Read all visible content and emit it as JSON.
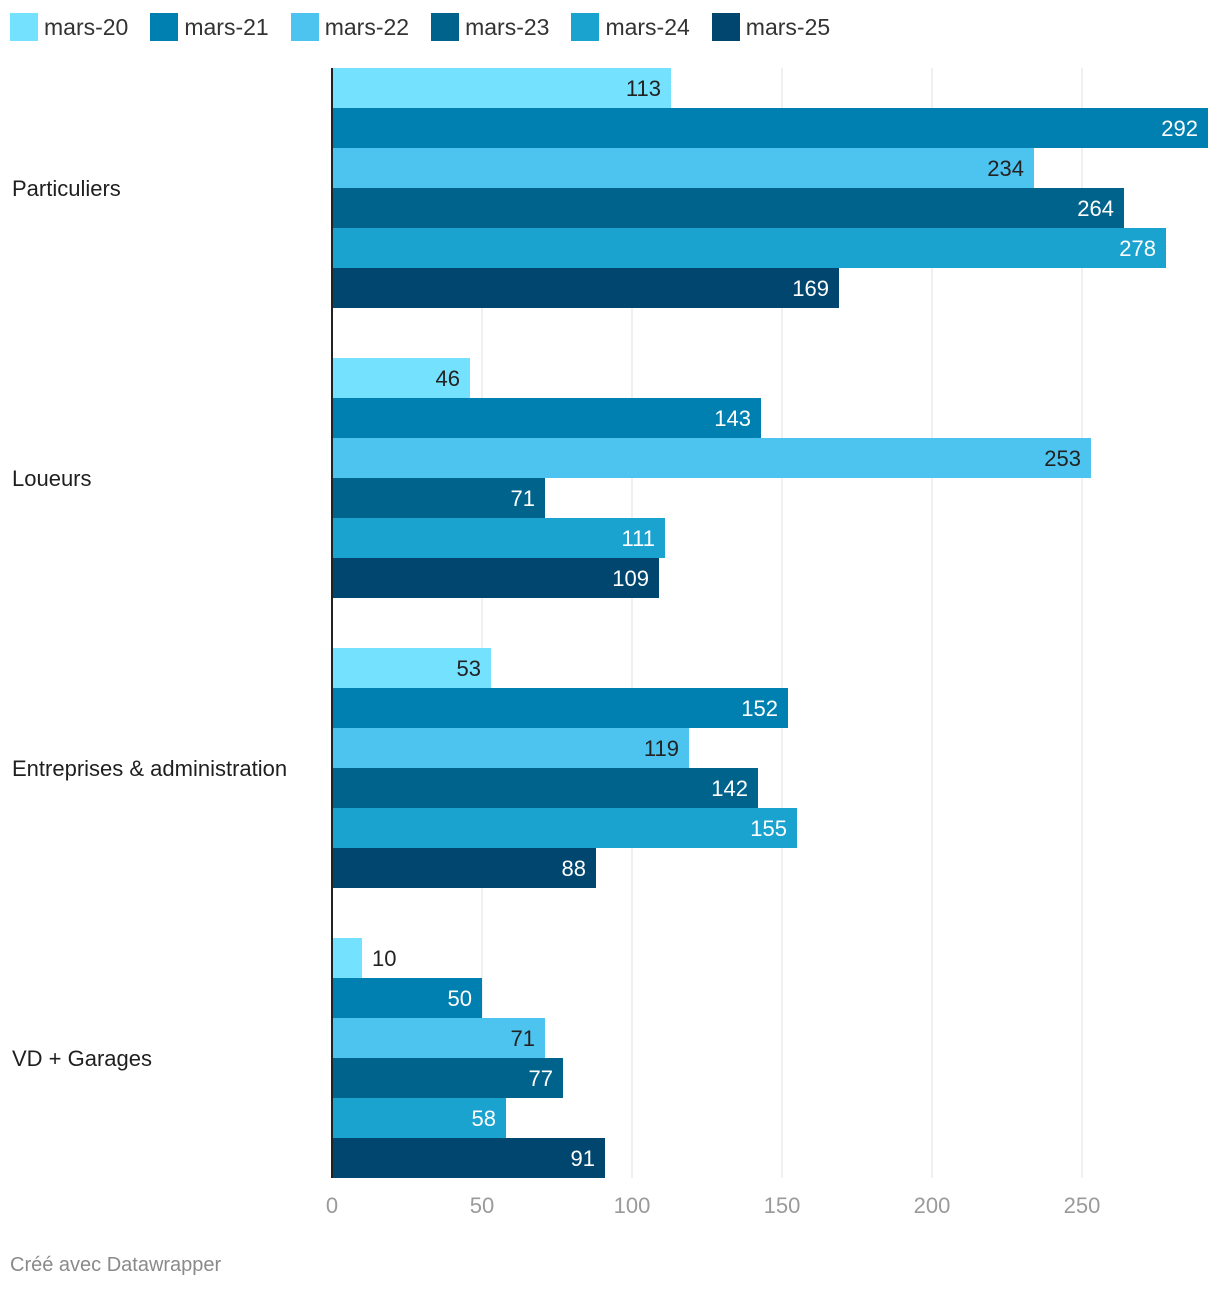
{
  "chart_data": {
    "type": "bar",
    "orientation": "horizontal",
    "categories": [
      "Particuliers",
      "Loueurs",
      "Entreprises & administration",
      "VD + Garages"
    ],
    "series": [
      {
        "name": "mars-20",
        "color": "#74e2ff",
        "values": [
          113,
          46,
          53,
          10
        ]
      },
      {
        "name": "mars-21",
        "color": "#0080b0",
        "values": [
          292,
          143,
          152,
          50
        ]
      },
      {
        "name": "mars-22",
        "color": "#4dc3ef",
        "values": [
          234,
          253,
          119,
          71
        ]
      },
      {
        "name": "mars-23",
        "color": "#00638c",
        "values": [
          264,
          71,
          142,
          77
        ]
      },
      {
        "name": "mars-24",
        "color": "#1ba3d0",
        "values": [
          278,
          111,
          155,
          58
        ]
      },
      {
        "name": "mars-25",
        "color": "#00466e",
        "values": [
          169,
          109,
          88,
          91
        ]
      }
    ],
    "xlim": [
      0,
      292
    ],
    "xticks": [
      0,
      50,
      100,
      150,
      200,
      250
    ],
    "grid": true,
    "legend": "top-left",
    "title": "",
    "xlabel": "",
    "ylabel": ""
  },
  "footer": {
    "credit": "Créé avec Datawrapper"
  }
}
